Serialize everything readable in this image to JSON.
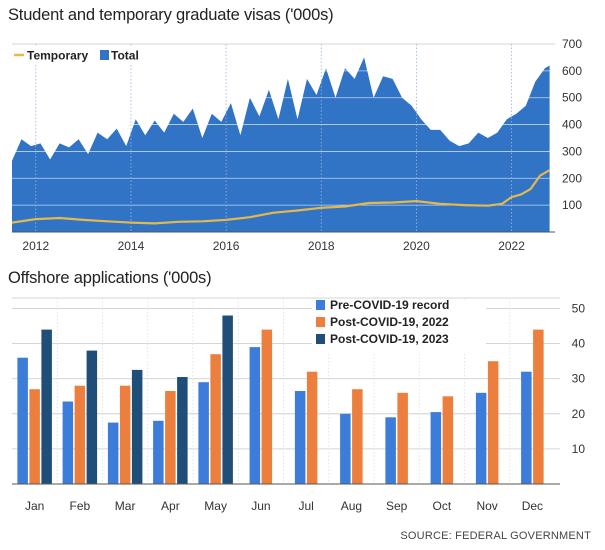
{
  "source": "SOURCE: FEDERAL GOVERNMENT",
  "colors": {
    "total": "#3174c6",
    "temporary": "#e4b84a",
    "pre_covid": "#3b7dd8",
    "post_2022": "#ec7f3e",
    "post_2023": "#1f4e79",
    "grid": "#c8c8c8"
  },
  "chart_data": [
    {
      "type": "area",
      "title": "Student and temporary graduate visas ('000s)",
      "xlabel": "",
      "ylabel": "",
      "xlim": [
        2011.5,
        2022.85
      ],
      "ylim": [
        0,
        700
      ],
      "x_ticks": [
        2012,
        2014,
        2016,
        2018,
        2020,
        2022
      ],
      "x_tick_labels": [
        "2012",
        "2014",
        "2016",
        "2018",
        "2020",
        "2022"
      ],
      "y_ticks": [
        100,
        200,
        300,
        400,
        500,
        600,
        700
      ],
      "y_tick_labels": [
        "100",
        "200",
        "300",
        "400",
        "500",
        "600",
        "700"
      ],
      "grid": true,
      "legend": {
        "position": "top-left",
        "items": [
          "Temporary",
          "Total"
        ]
      },
      "series": [
        {
          "name": "Total",
          "style": "area",
          "x": [
            2011.5,
            2011.7,
            2011.9,
            2012.1,
            2012.3,
            2012.5,
            2012.7,
            2012.9,
            2013.1,
            2013.3,
            2013.5,
            2013.7,
            2013.9,
            2014.1,
            2014.3,
            2014.5,
            2014.7,
            2014.9,
            2015.1,
            2015.3,
            2015.5,
            2015.7,
            2015.9,
            2016.1,
            2016.3,
            2016.5,
            2016.7,
            2016.9,
            2017.1,
            2017.3,
            2017.5,
            2017.7,
            2017.9,
            2018.1,
            2018.3,
            2018.5,
            2018.7,
            2018.9,
            2019.1,
            2019.3,
            2019.5,
            2019.7,
            2019.9,
            2020.1,
            2020.3,
            2020.5,
            2020.7,
            2020.9,
            2021.1,
            2021.3,
            2021.5,
            2021.7,
            2021.9,
            2022.1,
            2022.3,
            2022.5,
            2022.7,
            2022.8
          ],
          "values": [
            265,
            345,
            320,
            330,
            270,
            330,
            315,
            345,
            290,
            370,
            345,
            385,
            320,
            420,
            360,
            415,
            370,
            440,
            410,
            460,
            350,
            440,
            410,
            480,
            360,
            500,
            430,
            530,
            420,
            570,
            420,
            570,
            510,
            610,
            500,
            610,
            570,
            650,
            500,
            580,
            570,
            500,
            470,
            420,
            380,
            380,
            340,
            320,
            330,
            370,
            350,
            370,
            420,
            440,
            470,
            560,
            610,
            620
          ]
        },
        {
          "name": "Temporary",
          "style": "line",
          "x": [
            2011.5,
            2012.0,
            2012.5,
            2013.0,
            2013.5,
            2014.0,
            2014.5,
            2015.0,
            2015.5,
            2016.0,
            2016.5,
            2017.0,
            2017.5,
            2018.0,
            2018.5,
            2019.0,
            2019.5,
            2020.0,
            2020.5,
            2021.0,
            2021.5,
            2021.8,
            2022.0,
            2022.2,
            2022.4,
            2022.6,
            2022.8
          ],
          "values": [
            35,
            48,
            52,
            45,
            40,
            35,
            32,
            38,
            40,
            45,
            55,
            72,
            80,
            90,
            95,
            108,
            110,
            115,
            105,
            100,
            98,
            105,
            130,
            140,
            160,
            210,
            230
          ]
        }
      ]
    },
    {
      "type": "bar",
      "title": "Offshore applications ('000s)",
      "xlabel": "",
      "ylabel": "",
      "ylim": [
        0,
        53
      ],
      "y_ticks": [
        10,
        20,
        30,
        40,
        50
      ],
      "y_tick_labels": [
        "10",
        "20",
        "30",
        "40",
        "50"
      ],
      "grid": true,
      "legend": {
        "position": "top-right"
      },
      "categories": [
        "Jan",
        "Feb",
        "Mar",
        "Apr",
        "May",
        "Jun",
        "Jul",
        "Aug",
        "Sep",
        "Oct",
        "Nov",
        "Dec"
      ],
      "series": [
        {
          "name": "Pre-COVID-19 record",
          "values": [
            36,
            23.5,
            17.5,
            18,
            29,
            39,
            26.5,
            20,
            19,
            20.5,
            26,
            32
          ]
        },
        {
          "name": "Post-COVID-19, 2022",
          "values": [
            27,
            28,
            28,
            26.5,
            37,
            44,
            32,
            27,
            26,
            25,
            35,
            44
          ]
        },
        {
          "name": "Post-COVID-19, 2023",
          "values": [
            44,
            38,
            32.5,
            30.5,
            48,
            null,
            null,
            null,
            null,
            null,
            null,
            null
          ]
        }
      ]
    }
  ]
}
